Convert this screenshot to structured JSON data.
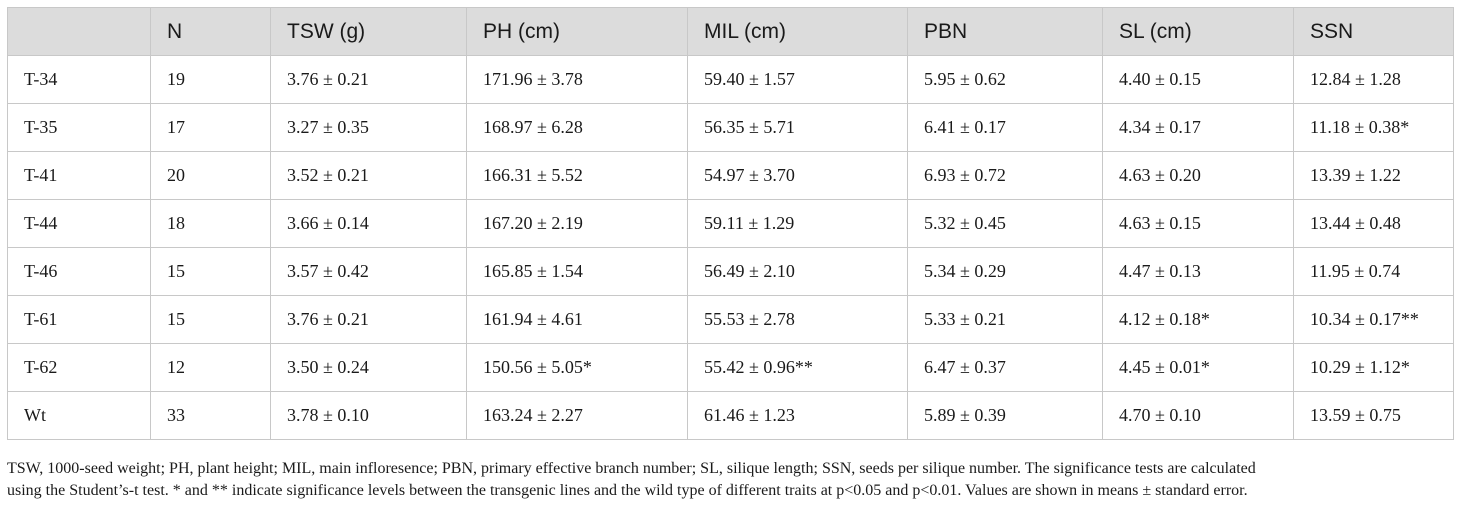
{
  "table": {
    "headers": [
      "",
      "N",
      "TSW (g)",
      "PH (cm)",
      "MIL (cm)",
      "PBN",
      "SL (cm)",
      "SSN"
    ],
    "rows": [
      [
        "T-34",
        "19",
        "3.76 ± 0.21",
        "171.96 ± 3.78",
        "59.40 ± 1.57",
        "5.95 ± 0.62",
        "4.40 ± 0.15",
        "12.84 ± 1.28"
      ],
      [
        "T-35",
        "17",
        "3.27 ± 0.35",
        "168.97 ± 6.28",
        "56.35 ± 5.71",
        "6.41 ± 0.17",
        "4.34 ± 0.17",
        "11.18 ± 0.38*"
      ],
      [
        "T-41",
        "20",
        "3.52 ± 0.21",
        "166.31 ± 5.52",
        "54.97 ± 3.70",
        "6.93 ± 0.72",
        "4.63 ± 0.20",
        "13.39 ± 1.22"
      ],
      [
        "T-44",
        "18",
        "3.66 ± 0.14",
        "167.20 ± 2.19",
        "59.11 ± 1.29",
        "5.32 ± 0.45",
        "4.63 ± 0.15",
        "13.44 ± 0.48"
      ],
      [
        "T-46",
        "15",
        "3.57 ± 0.42",
        "165.85 ± 1.54",
        "56.49 ± 2.10",
        "5.34 ± 0.29",
        "4.47 ± 0.13",
        "11.95 ± 0.74"
      ],
      [
        "T-61",
        "15",
        "3.76 ± 0.21",
        "161.94 ± 4.61",
        "55.53 ± 2.78",
        "5.33 ± 0.21",
        "4.12 ± 0.18*",
        "10.34 ± 0.17**"
      ],
      [
        "T-62",
        "12",
        "3.50 ± 0.24",
        "150.56 ± 5.05*",
        "55.42 ± 0.96**",
        "6.47 ± 0.37",
        "4.45 ± 0.01*",
        "10.29 ± 1.12*"
      ],
      [
        "Wt",
        "33",
        "3.78 ± 0.10",
        "163.24 ± 2.27",
        "61.46 ± 1.23",
        "5.89 ± 0.39",
        "4.70 ± 0.10",
        "13.59 ± 0.75"
      ]
    ]
  },
  "caption": {
    "line1": "TSW, 1000-seed weight; PH, plant height; MIL, main infloresence; PBN, primary effective branch number; SL, silique length; SSN, seeds per silique number. The significance tests are calculated",
    "line2": "using the Student’s-t test. * and ** indicate significance levels between the transgenic lines and the wild type of different traits at p<0.05 and p<0.01. Values are shown in means ± standard error."
  }
}
